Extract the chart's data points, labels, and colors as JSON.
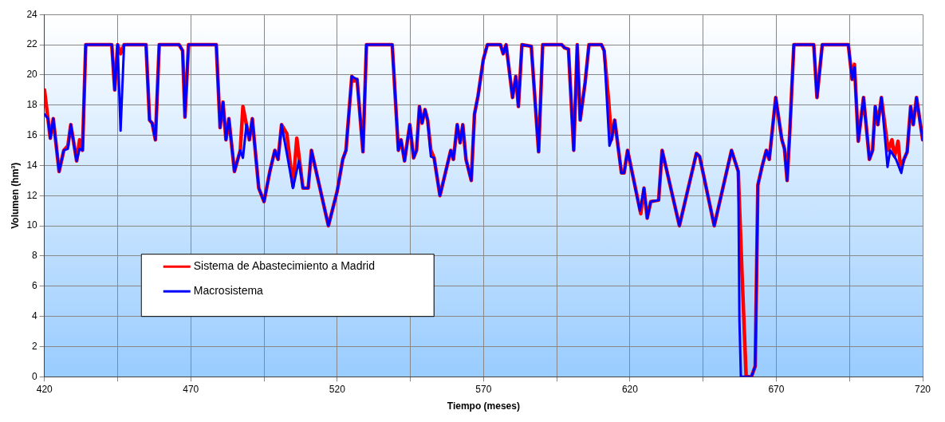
{
  "chart_data": {
    "type": "line",
    "xlabel": "Tiempo (meses)",
    "ylabel": "Volumen (hm³)",
    "xlim": [
      420,
      720
    ],
    "ylim": [
      0,
      24
    ],
    "xticks": [
      420,
      {
        "value": 445,
        "label": null
      },
      470,
      {
        "value": 495,
        "label": null
      },
      520,
      {
        "value": 545,
        "label": null
      },
      570,
      {
        "value": 595,
        "label": null
      },
      620,
      {
        "value": 645,
        "label": null
      },
      670,
      {
        "value": 695,
        "label": null
      },
      720
    ],
    "yticks": [
      0,
      2,
      4,
      6,
      8,
      10,
      12,
      14,
      16,
      18,
      20,
      22,
      24
    ],
    "grid": true,
    "legend": "bottom left",
    "marker": "none",
    "line_style": "solid",
    "series": [
      {
        "name": "Sistema de Abastecimiento a Madrid",
        "color": "#ff0000",
        "x": [
          420,
          421.2,
          422,
          423,
          425,
          426.6,
          428,
          429,
          431,
          432,
          433,
          434.1,
          443,
          444,
          445,
          446,
          447.2,
          454.7,
          455.9,
          456.8,
          457.9,
          459.2,
          466,
          467.2,
          468,
          469.2,
          478.7,
          480,
          481,
          482,
          483,
          484.9,
          486.9,
          487.8,
          489,
          490,
          491,
          493.2,
          495,
          497,
          498.7,
          499.8,
          501,
          502.8,
          504.9,
          506.2,
          508.3,
          510.1,
          511.2,
          517,
          520,
          521.9,
          523,
          525,
          525.8,
          526.8,
          528.8,
          530,
          538.8,
          540.9,
          541.8,
          543,
          544.8,
          546.1,
          547.1,
          548.1,
          549,
          550,
          550.9,
          552,
          553.1,
          555.1,
          558.8,
          559.7,
          561,
          562,
          562.9,
          564,
          565.8,
          566.9,
          568.1,
          569.9,
          571.3,
          575.8,
          576.7,
          577.7,
          579.9,
          581,
          581.9,
          583.1,
          586.3,
          588.8,
          590.2,
          596.7,
          597.6,
          599,
          600.8,
          602,
          603,
          604.7,
          606,
          610.3,
          611.2,
          612.8,
          613.7,
          614.8,
          617.1,
          618,
          619.2,
          623.7,
          624.8,
          625.9,
          627.1,
          629.8,
          631,
          636.9,
          642.7,
          643.8,
          648.8,
          654.7,
          657,
          658.3,
          659.7,
          661.5,
          662.8,
          663.7,
          665.1,
          666.6,
          667.6,
          669.8,
          671.9,
          672.8,
          673.7,
          674.6,
          676,
          682.8,
          683.9,
          685.7,
          694.6,
          695.9,
          696.7,
          698,
          699.8,
          701.8,
          702.9,
          703.8,
          704.7,
          705.9,
          708.2,
          709.5,
          710.4,
          711.6,
          712.5,
          713.6,
          714.7,
          715.9,
          716.8,
          717.9,
          720
        ],
        "values": [
          19.0,
          17.1,
          15.8,
          17.1,
          13.6,
          15.0,
          15.3,
          16.7,
          14.3,
          15.7,
          15.0,
          22,
          22,
          19.0,
          22,
          21.4,
          22,
          22,
          17.0,
          16.8,
          15.7,
          22,
          22,
          21.6,
          17.2,
          22,
          22,
          16.5,
          18.2,
          15.7,
          17.1,
          13.6,
          15.0,
          17.9,
          16.7,
          15.7,
          17.1,
          12.5,
          11.6,
          13.6,
          15.0,
          14.4,
          16.7,
          16.1,
          12.6,
          15.8,
          12.5,
          12.5,
          15.0,
          10.0,
          12.3,
          14.4,
          15.0,
          19.9,
          19.6,
          19.7,
          14.9,
          22,
          22,
          15.0,
          15.7,
          14.3,
          16.7,
          14.5,
          15.0,
          17.9,
          16.8,
          17.7,
          17.0,
          15.0,
          14.5,
          12.0,
          15.0,
          14.4,
          16.7,
          15.5,
          16.7,
          14.4,
          13.0,
          17.4,
          18.6,
          21.0,
          22,
          22,
          21.4,
          22,
          18.5,
          19.9,
          17.9,
          22,
          21.9,
          14.9,
          22,
          22,
          21.8,
          21.7,
          15.0,
          22,
          17.0,
          19.5,
          22,
          22,
          21.6,
          18.1,
          15.7,
          17.0,
          13.5,
          13.5,
          15.0,
          10.8,
          12.5,
          10.5,
          11.6,
          11.7,
          15.0,
          10.0,
          14.8,
          14.6,
          10.0,
          15.0,
          13.6,
          6.8,
          0,
          0,
          0.7,
          12.7,
          13.9,
          15.0,
          14.4,
          18.5,
          15.7,
          15.1,
          13.0,
          16.2,
          22,
          22,
          18.5,
          22,
          22,
          19.7,
          20.7,
          15.6,
          18.5,
          14.4,
          15.0,
          17.9,
          16.7,
          18.5,
          15.0,
          15.7,
          14.6,
          15.6,
          13.7,
          14.4,
          14.9,
          17.9,
          16.7,
          18.5,
          15.7
        ]
      },
      {
        "name": "Macrosistema",
        "color": "#0000ff",
        "x": [
          420,
          421.2,
          422,
          423,
          425,
          426.6,
          428,
          429,
          431,
          432,
          433,
          434.1,
          443,
          444,
          445,
          446,
          447.2,
          454.7,
          455.9,
          456.8,
          457.9,
          459.2,
          466,
          467.2,
          468,
          469.2,
          478.7,
          480,
          481,
          482,
          483,
          484.9,
          486.9,
          487.8,
          489,
          490,
          491,
          493.2,
          495,
          497,
          498.7,
          499.8,
          501,
          502.8,
          504.9,
          506.9,
          508.3,
          510.1,
          511.2,
          517,
          520,
          521.9,
          523,
          525,
          526.8,
          528.8,
          530,
          538.8,
          540.9,
          541.8,
          543,
          544.8,
          546.1,
          547.1,
          548.1,
          549,
          550,
          550.9,
          552,
          553.1,
          555.1,
          558.8,
          559.7,
          561,
          562,
          562.9,
          564,
          565.8,
          566.9,
          568.1,
          569.9,
          571.3,
          575.8,
          576.7,
          577.7,
          579.9,
          581,
          581.9,
          583.1,
          586.3,
          588.8,
          590.2,
          596.7,
          597.6,
          599,
          600.8,
          602,
          603,
          604.7,
          606,
          610.3,
          611.2,
          613,
          613.7,
          614.8,
          617.1,
          618,
          619.2,
          623.4,
          624.8,
          625.9,
          627.1,
          629.8,
          631,
          636.9,
          642.7,
          643.8,
          648.8,
          654.7,
          657,
          657.4,
          657.9,
          661.5,
          662.8,
          663.7,
          665.1,
          666.6,
          667.6,
          669.8,
          671.9,
          672.8,
          673.7,
          674.6,
          676,
          682.8,
          683.9,
          685.7,
          694.6,
          695.9,
          696.7,
          698,
          699.8,
          701.8,
          702.9,
          703.8,
          704.7,
          705.9,
          708,
          708.9,
          710.9,
          712.7,
          713.6,
          714.7,
          715.9,
          716.8,
          717.9,
          720
        ],
        "values": [
          17.4,
          17.1,
          15.8,
          17.1,
          13.6,
          15.0,
          15.1,
          16.7,
          14.3,
          15.1,
          15.0,
          22,
          22,
          19.0,
          22,
          16.3,
          22,
          22,
          17.0,
          16.8,
          15.7,
          22,
          22,
          21.6,
          17.2,
          22,
          22,
          16.5,
          18.2,
          15.7,
          17.1,
          13.6,
          15.0,
          14.5,
          16.7,
          15.7,
          17.1,
          12.5,
          11.6,
          13.6,
          15.0,
          14.4,
          16.7,
          14.8,
          12.5,
          14.3,
          12.5,
          12.5,
          15.0,
          10.0,
          12.3,
          14.4,
          15.0,
          19.9,
          19.7,
          14.9,
          22,
          22,
          15.0,
          15.7,
          14.3,
          16.7,
          14.5,
          15.0,
          17.9,
          16.8,
          17.7,
          17.0,
          14.6,
          14.5,
          12.0,
          15.0,
          14.4,
          16.7,
          15.5,
          16.7,
          14.4,
          13.0,
          17.4,
          18.6,
          21.0,
          22,
          22,
          21.4,
          22,
          18.5,
          19.9,
          17.9,
          22,
          21.9,
          14.9,
          22,
          22,
          21.8,
          21.7,
          15.0,
          22,
          17.0,
          19.5,
          22,
          22,
          21.6,
          15.3,
          15.7,
          17.0,
          13.5,
          13.5,
          15.0,
          11.0,
          12.5,
          10.5,
          11.6,
          11.7,
          15.0,
          10.0,
          14.8,
          14.6,
          10.0,
          15.0,
          13.6,
          3.8,
          0,
          0,
          0.7,
          12.7,
          13.9,
          15.0,
          14.4,
          18.5,
          15.7,
          15.1,
          13.0,
          16.2,
          22,
          22,
          18.5,
          22,
          22,
          19.7,
          20.5,
          15.6,
          18.5,
          14.4,
          15.0,
          17.9,
          16.7,
          18.5,
          13.9,
          15.0,
          14.4,
          13.5,
          14.4,
          14.9,
          17.9,
          16.7,
          18.5,
          15.7
        ]
      }
    ]
  }
}
